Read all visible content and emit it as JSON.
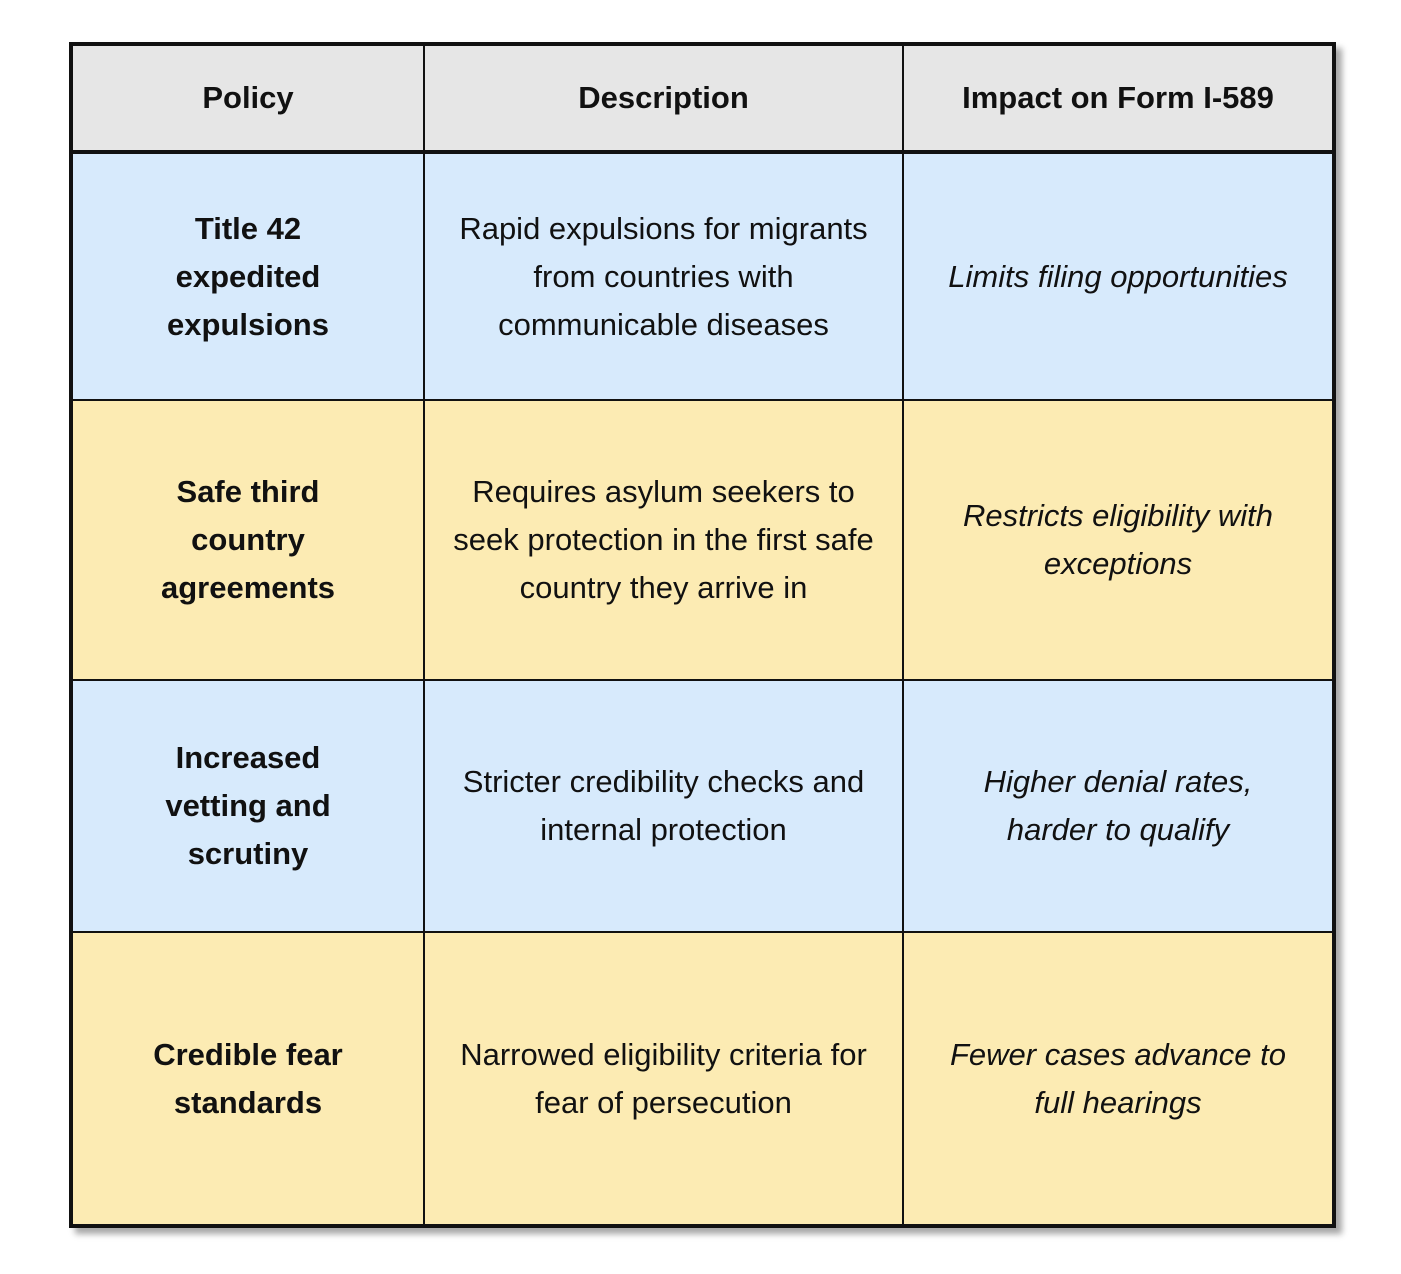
{
  "table": {
    "header": [
      "Policy",
      "Description",
      "Impact on Form I-589"
    ],
    "rows": [
      [
        "Title 42 expedited expulsions",
        "Rapid expulsions for migrants from countries with communicable diseases",
        "Limits filing opportunities"
      ],
      [
        "Safe third country agreements",
        "Requires asylum seekers to seek protection in the first safe country they arrive in",
        "Restricts eligibility with exceptions"
      ],
      [
        "Increased vetting and scrutiny",
        "Stricter credibility checks and internal protection",
        "Higher denial rates, harder to qualify"
      ],
      [
        "Credible fear standards",
        "Narrowed eligibility criteria for fear of persecution",
        "Fewer cases advance to full hearings"
      ]
    ]
  }
}
